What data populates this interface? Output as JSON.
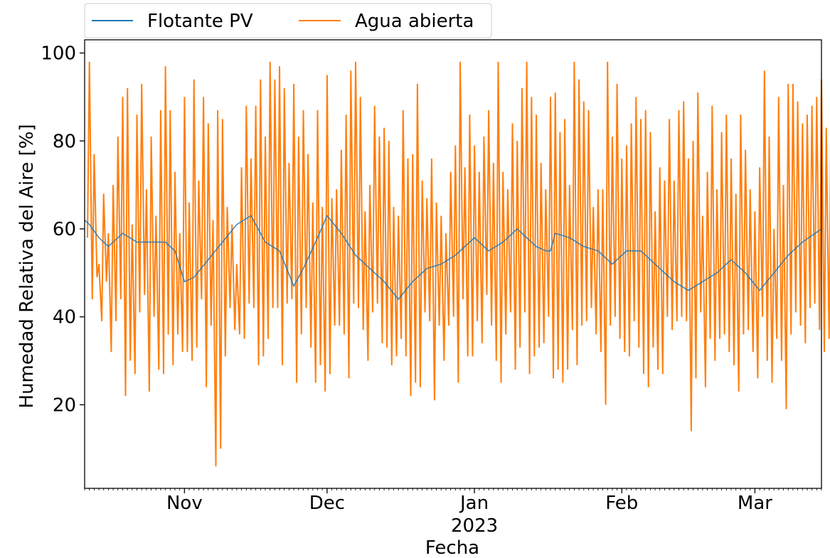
{
  "chart_data": {
    "type": "line",
    "title": "",
    "xlabel": "Fecha",
    "ylabel": "Humedad Relativa del Aire [%]",
    "x_range": [
      "2022-10-11",
      "2023-03-15"
    ],
    "ylim": [
      1,
      103
    ],
    "y_ticks": [
      20,
      40,
      60,
      80,
      100
    ],
    "x_ticks": [
      {
        "date": "2022-11-01",
        "label": "Nov"
      },
      {
        "date": "2022-12-01",
        "label": "Dec"
      },
      {
        "date": "2023-01-01",
        "label": "Jan",
        "year": "2023"
      },
      {
        "date": "2023-02-01",
        "label": "Feb"
      },
      {
        "date": "2023-03-01",
        "label": "Mar"
      }
    ],
    "grid": false,
    "legend_position": "top-left, above plot",
    "series": [
      {
        "name": "Flotante PV",
        "color": "#1f77b4",
        "sampling": "daily mean",
        "points": [
          [
            "2022-10-11",
            62
          ],
          [
            "2022-10-12",
            61
          ],
          [
            "2022-10-14",
            58
          ],
          [
            "2022-10-16",
            56
          ],
          [
            "2022-10-19",
            59
          ],
          [
            "2022-10-22",
            57
          ],
          [
            "2022-10-25",
            57
          ],
          [
            "2022-10-28",
            57
          ],
          [
            "2022-10-30",
            55
          ],
          [
            "2022-11-01",
            48
          ],
          [
            "2022-11-03",
            49
          ],
          [
            "2022-11-06",
            53
          ],
          [
            "2022-11-09",
            57
          ],
          [
            "2022-11-12",
            61
          ],
          [
            "2022-11-15",
            63
          ],
          [
            "2022-11-18",
            57
          ],
          [
            "2022-11-21",
            55
          ],
          [
            "2022-11-24",
            47
          ],
          [
            "2022-11-26",
            51
          ],
          [
            "2022-11-29",
            58
          ],
          [
            "2022-12-01",
            63
          ],
          [
            "2022-12-04",
            59
          ],
          [
            "2022-12-07",
            54
          ],
          [
            "2022-12-10",
            51
          ],
          [
            "2022-12-13",
            48
          ],
          [
            "2022-12-16",
            44
          ],
          [
            "2022-12-19",
            48
          ],
          [
            "2022-12-22",
            51
          ],
          [
            "2022-12-25",
            52
          ],
          [
            "2022-12-28",
            54
          ],
          [
            "2023-01-01",
            58
          ],
          [
            "2023-01-04",
            55
          ],
          [
            "2023-01-07",
            57
          ],
          [
            "2023-01-10",
            60
          ],
          [
            "2023-01-14",
            56
          ],
          [
            "2023-01-16",
            55
          ],
          [
            "2023-01-17",
            55
          ],
          [
            "2023-01-18",
            59
          ],
          [
            "2023-01-21",
            58
          ],
          [
            "2023-01-24",
            56
          ],
          [
            "2023-01-27",
            55
          ],
          [
            "2023-01-30",
            52
          ],
          [
            "2023-02-02",
            55
          ],
          [
            "2023-02-05",
            55
          ],
          [
            "2023-02-09",
            51
          ],
          [
            "2023-02-12",
            48
          ],
          [
            "2023-02-15",
            46
          ],
          [
            "2023-02-18",
            48
          ],
          [
            "2023-02-21",
            50
          ],
          [
            "2023-02-24",
            53
          ],
          [
            "2023-02-27",
            50
          ],
          [
            "2023-03-02",
            46
          ],
          [
            "2023-03-05",
            50
          ],
          [
            "2023-03-08",
            54
          ],
          [
            "2023-03-11",
            57
          ],
          [
            "2023-03-15",
            60
          ]
        ]
      },
      {
        "name": "Agua abierta",
        "color": "#ff7f0e",
        "sampling": "daily maximum / minimum",
        "daily_max": [
          98,
          77,
          52,
          68,
          59,
          70,
          81,
          90,
          92,
          61,
          86,
          93,
          69,
          81,
          63,
          87,
          97,
          87,
          73,
          59,
          90,
          66,
          94,
          71,
          90,
          84,
          62,
          87,
          85,
          65,
          61,
          52,
          74,
          88,
          76,
          88,
          94,
          81,
          98,
          94,
          97,
          92,
          75,
          93,
          81,
          87,
          77,
          66,
          87,
          65,
          95,
          67,
          69,
          78,
          86,
          96,
          98,
          90,
          64,
          70,
          88,
          81,
          83,
          80,
          65,
          63,
          87,
          76,
          77,
          93,
          71,
          67,
          76,
          66,
          63,
          59,
          73,
          79,
          98,
          74,
          86,
          79,
          73,
          81,
          87,
          75,
          98,
          73,
          69,
          84,
          80,
          92,
          98,
          90,
          86,
          75,
          69,
          90,
          91,
          82,
          85,
          70,
          98,
          94,
          89,
          87,
          65,
          69,
          69,
          98,
          81,
          93,
          76,
          79,
          84,
          90,
          85,
          87,
          82,
          64,
          74,
          71,
          85,
          71,
          87,
          89,
          76,
          80,
          91,
          63,
          73,
          88,
          69,
          82,
          86,
          76,
          68,
          86,
          78,
          69,
          64,
          74,
          96,
          81,
          60,
          90,
          70,
          93,
          93,
          89,
          84,
          86,
          88,
          90,
          94,
          83,
          87,
          64,
          94
        ],
        "daily_min": [
          58,
          44,
          49,
          39,
          48,
          32,
          39,
          44,
          22,
          30,
          27,
          41,
          45,
          23,
          40,
          28,
          27,
          36,
          29,
          36,
          32,
          32,
          30,
          33,
          44,
          24,
          38,
          6,
          10,
          31,
          42,
          37,
          36,
          35,
          43,
          42,
          29,
          31,
          35,
          42,
          42,
          29,
          43,
          44,
          25,
          36,
          42,
          33,
          25,
          29,
          23,
          27,
          38,
          38,
          36,
          26,
          43,
          42,
          37,
          30,
          41,
          43,
          34,
          33,
          29,
          31,
          35,
          31,
          22,
          25,
          24,
          41,
          39,
          21,
          38,
          30,
          38,
          40,
          25,
          44,
          31,
          31,
          39,
          34,
          45,
          38,
          30,
          25,
          36,
          41,
          28,
          33,
          41,
          27,
          31,
          33,
          34,
          40,
          26,
          28,
          25,
          28,
          37,
          29,
          38,
          39,
          42,
          36,
          32,
          20,
          38,
          40,
          35,
          32,
          31,
          39,
          33,
          27,
          24,
          33,
          28,
          27,
          40,
          37,
          39,
          40,
          39,
          14,
          26,
          41,
          24,
          35,
          30,
          35,
          36,
          32,
          29,
          23,
          36,
          37,
          32,
          26,
          40,
          30,
          25,
          35,
          30,
          19,
          36,
          41,
          38,
          34,
          42,
          43,
          37,
          32,
          35,
          43,
          39
        ]
      }
    ]
  }
}
